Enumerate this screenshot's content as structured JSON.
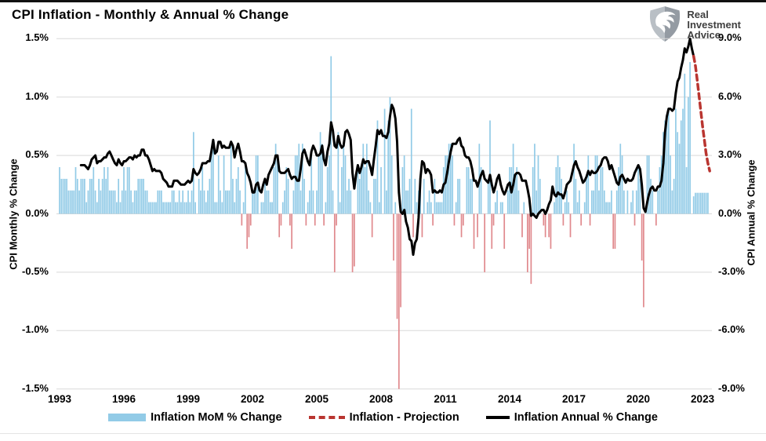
{
  "header": {
    "title": "CPI Inflation - Monthly & Annual % Change",
    "logo": {
      "line1": "Real",
      "line2": "Investment",
      "line3": "Advice"
    }
  },
  "chart_data": {
    "type": "combo-bar-line",
    "title": "CPI Inflation - Monthly & Annual % Change",
    "grid": true,
    "left_axis": {
      "label": "CPI Monthly % Change",
      "ticks": [
        "1.5%",
        "1.0%",
        "0.5%",
        "0.0%",
        "-0.5%",
        "-1.0%",
        "-1.5%"
      ],
      "min": -1.5,
      "max": 1.5
    },
    "right_axis": {
      "label": "CPI Annual % Change",
      "ticks": [
        "9.0%",
        "6.0%",
        "3.0%",
        "0.0%",
        "-3.0%",
        "-6.0%",
        "-9.0%"
      ],
      "min": -9.0,
      "max": 9.0
    },
    "x_axis": {
      "ticks": [
        "1993",
        "1996",
        "1999",
        "2002",
        "2005",
        "2008",
        "2011",
        "2014",
        "2017",
        "2020",
        "2023"
      ],
      "start_year": 1993,
      "end_year": 2023
    },
    "colors": {
      "bar_positive": "#92CBE7",
      "bar_negative": "#E0898D",
      "annual_line": "#000000",
      "projection_line": "#B93530",
      "gridline": "#D9D9D9"
    },
    "legend": [
      {
        "label": "Inflation MoM % Change",
        "swatch": "bar",
        "color": "#92CBE7"
      },
      {
        "label": "Inflation - Projection",
        "swatch": "dashed-line",
        "color": "#B93530"
      },
      {
        "label": "Inflation Annual % Change",
        "swatch": "line",
        "color": "#000000"
      }
    ],
    "series": [
      {
        "name": "Inflation MoM % Change",
        "type": "bar",
        "axis": "left",
        "start": "1993-01",
        "values": [
          0.4,
          0.3,
          0.3,
          0.3,
          0.3,
          0.2,
          0.2,
          0.2,
          0.2,
          0.4,
          0.3,
          0.2,
          0.3,
          0.3,
          0.3,
          0.1,
          0.2,
          0.3,
          0.3,
          0.4,
          0.2,
          0.1,
          0.3,
          0.2,
          0.3,
          0.4,
          0.3,
          0.4,
          0.2,
          0.2,
          0.2,
          0.2,
          0.1,
          0.3,
          0.1,
          0.2,
          0.4,
          0.2,
          0.4,
          0.4,
          0.2,
          0.1,
          0.2,
          0.2,
          0.3,
          0.3,
          0.3,
          0.3,
          0.2,
          0.2,
          0.1,
          0.1,
          0.1,
          0.1,
          0.1,
          0.2,
          0.2,
          0.2,
          0.1,
          0.1,
          0.1,
          0.1,
          0.1,
          0.2,
          0.2,
          0.1,
          0.1,
          0.2,
          0.1,
          0.2,
          0.1,
          0.1,
          0.2,
          0.1,
          0.2,
          0.7,
          0.1,
          0.0,
          0.3,
          0.2,
          0.4,
          0.2,
          0.1,
          0.2,
          0.3,
          0.5,
          0.6,
          0.1,
          0.1,
          0.5,
          0.2,
          0.1,
          0.5,
          0.2,
          0.2,
          0.2,
          0.6,
          0.3,
          0.1,
          0.3,
          0.4,
          0.2,
          -0.1,
          0.1,
          0.4,
          -0.3,
          -0.2,
          -0.1,
          0.2,
          0.2,
          0.5,
          0.5,
          0.0,
          0.1,
          0.1,
          0.3,
          0.2,
          0.2,
          0.1,
          0.1,
          0.4,
          0.6,
          0.5,
          -0.2,
          -0.1,
          0.1,
          0.2,
          0.4,
          0.3,
          -0.1,
          -0.3,
          0.2,
          0.5,
          0.5,
          0.6,
          0.2,
          0.6,
          0.3,
          -0.1,
          0.1,
          0.2,
          0.5,
          0.2,
          -0.1,
          0.2,
          0.5,
          0.7,
          0.6,
          -0.1,
          0.1,
          0.4,
          0.5,
          1.35,
          0.2,
          -0.5,
          -0.1,
          0.7,
          0.1,
          0.4,
          0.6,
          0.5,
          0.2,
          0.3,
          0.2,
          -0.5,
          -0.45,
          0.0,
          0.4,
          0.3,
          0.4,
          0.6,
          0.4,
          0.6,
          0.2,
          0.1,
          -0.2,
          0.3,
          0.3,
          0.8,
          0.1,
          0.4,
          0.0,
          0.9,
          0.2,
          0.8,
          1.0,
          0.5,
          -0.4,
          0.1,
          -0.9,
          -1.7,
          -0.8,
          0.4,
          0.5,
          0.2,
          0.2,
          0.3,
          0.9,
          -0.2,
          0.3,
          0.1,
          0.2,
          0.3,
          -0.2,
          0.3,
          0.0,
          0.1,
          0.2,
          0.1,
          -0.1,
          0.3,
          0.1,
          0.1,
          0.1,
          0.1,
          0.4,
          0.5,
          0.5,
          0.6,
          0.6,
          0.5,
          -0.1,
          0.1,
          0.3,
          0.3,
          -0.2,
          -0.1,
          0.0,
          0.4,
          0.4,
          0.3,
          0.3,
          -0.3,
          0.0,
          -0.2,
          0.6,
          0.4,
          0.0,
          -0.5,
          0.0,
          0.3,
          0.8,
          -0.3,
          -0.1,
          0.1,
          0.2,
          0.0,
          0.1,
          0.1,
          -0.3,
          0.0,
          0.2,
          0.4,
          0.4,
          0.6,
          0.3,
          0.4,
          0.2,
          0.0,
          -0.2,
          0.1,
          0.0,
          -0.5,
          -0.3,
          -0.6,
          0.4,
          0.6,
          0.2,
          0.5,
          0.3,
          0.0,
          -0.1,
          -0.2,
          0.0,
          -0.2,
          -0.3,
          0.0,
          0.1,
          0.4,
          0.5,
          0.4,
          0.3,
          -0.1,
          0.1,
          0.2,
          0.1,
          -0.2,
          0.0,
          0.6,
          0.3,
          0.1,
          0.2,
          -0.1,
          0.0,
          0.1,
          0.3,
          0.5,
          -0.1,
          0.2,
          0.2,
          0.5,
          0.5,
          0.2,
          0.4,
          0.4,
          0.2,
          0.1,
          0.1,
          0.1,
          0.2,
          -0.3,
          -0.3,
          0.2,
          0.4,
          0.6,
          0.5,
          0.2,
          0.0,
          0.2,
          0.0,
          0.1,
          0.2,
          -0.1,
          0.2,
          0.4,
          0.3,
          -0.4,
          -0.8,
          0.0,
          0.5,
          0.5,
          0.3,
          0.2,
          0.0,
          -0.1,
          0.2,
          0.4,
          0.5,
          0.7,
          0.8,
          0.8,
          0.9,
          0.5,
          0.2,
          0.3,
          0.9,
          0.7,
          0.6,
          0.8,
          0.9,
          1.2,
          0.4,
          1.0,
          1.3,
          0.0,
          0.15,
          0.18,
          0.18,
          0.18,
          0.18,
          0.18,
          0.18,
          0.18,
          0.18
        ]
      },
      {
        "name": "Inflation Annual % Change",
        "type": "line",
        "axis": "right",
        "start": "1994-01",
        "values": [
          2.5,
          2.5,
          2.5,
          2.4,
          2.3,
          2.5,
          2.8,
          2.9,
          3.0,
          2.6,
          2.7,
          2.7,
          2.8,
          2.9,
          2.9,
          3.1,
          3.2,
          3.0,
          2.8,
          2.6,
          2.5,
          2.8,
          2.6,
          2.5,
          2.7,
          2.7,
          2.8,
          2.9,
          2.9,
          2.8,
          3.0,
          2.9,
          3.0,
          3.0,
          3.3,
          3.3,
          3.0,
          3.0,
          2.8,
          2.5,
          2.2,
          2.3,
          2.2,
          2.2,
          2.2,
          2.1,
          1.8,
          1.7,
          1.6,
          1.4,
          1.4,
          1.4,
          1.7,
          1.7,
          1.7,
          1.6,
          1.5,
          1.5,
          1.5,
          1.6,
          1.7,
          1.6,
          1.7,
          2.3,
          2.1,
          2.0,
          2.1,
          2.3,
          2.6,
          2.6,
          2.6,
          2.7,
          2.7,
          3.2,
          3.8,
          3.1,
          3.2,
          3.7,
          3.7,
          3.4,
          3.5,
          3.4,
          3.4,
          3.4,
          3.7,
          3.5,
          2.9,
          3.3,
          3.6,
          3.2,
          2.7,
          2.7,
          2.6,
          2.1,
          1.9,
          1.6,
          1.1,
          1.1,
          1.5,
          1.6,
          1.2,
          1.1,
          1.5,
          1.8,
          1.5,
          2.0,
          2.2,
          2.4,
          2.6,
          3.0,
          3.0,
          2.2,
          2.1,
          2.1,
          2.1,
          2.2,
          2.3,
          2.0,
          1.8,
          1.9,
          1.9,
          1.7,
          1.7,
          2.3,
          3.1,
          3.3,
          3.0,
          2.7,
          2.5,
          3.2,
          3.5,
          3.3,
          3.0,
          3.0,
          3.1,
          3.5,
          2.8,
          2.5,
          3.2,
          3.6,
          4.7,
          4.3,
          3.5,
          3.4,
          4.0,
          3.6,
          3.4,
          3.5,
          4.2,
          4.3,
          4.1,
          3.8,
          2.1,
          1.3,
          2.0,
          2.5,
          2.1,
          2.4,
          2.8,
          2.6,
          2.7,
          2.7,
          2.4,
          2.0,
          2.8,
          3.5,
          4.3,
          4.1,
          4.3,
          4.0,
          4.0,
          3.9,
          4.2,
          5.0,
          5.6,
          5.4,
          4.9,
          3.7,
          1.1,
          0.1,
          0.0,
          0.2,
          -0.4,
          -0.7,
          -1.3,
          -1.4,
          -2.1,
          -1.5,
          -1.3,
          -0.2,
          1.8,
          2.7,
          2.6,
          2.1,
          2.3,
          2.2,
          2.0,
          1.1,
          1.2,
          1.1,
          1.1,
          1.2,
          1.1,
          1.5,
          1.6,
          2.1,
          2.7,
          3.2,
          3.6,
          3.6,
          3.6,
          3.8,
          3.9,
          3.5,
          3.4,
          3.0,
          2.9,
          2.9,
          2.7,
          2.3,
          1.7,
          1.7,
          1.4,
          1.7,
          2.0,
          2.2,
          1.8,
          1.7,
          1.6,
          2.0,
          1.5,
          1.1,
          1.4,
          1.8,
          2.0,
          1.5,
          1.2,
          1.0,
          1.2,
          1.5,
          1.6,
          1.1,
          1.5,
          2.0,
          2.1,
          2.1,
          2.0,
          1.7,
          1.7,
          1.7,
          1.3,
          0.8,
          -0.1,
          0.0,
          -0.1,
          -0.2,
          0.0,
          0.1,
          0.2,
          0.2,
          0.0,
          0.2,
          0.5,
          0.7,
          1.4,
          1.0,
          0.9,
          1.1,
          1.0,
          1.0,
          0.8,
          1.1,
          1.5,
          1.6,
          1.7,
          2.1,
          2.5,
          2.7,
          2.4,
          2.2,
          1.9,
          1.6,
          1.7,
          1.9,
          2.2,
          2.0,
          2.2,
          2.1,
          2.1,
          2.2,
          2.4,
          2.5,
          2.8,
          2.9,
          2.9,
          2.7,
          2.3,
          2.5,
          2.2,
          1.9,
          1.6,
          1.5,
          1.9,
          2.0,
          1.8,
          1.6,
          1.8,
          1.7,
          1.7,
          1.8,
          2.1,
          2.3,
          2.5,
          2.3,
          1.5,
          0.3,
          0.1,
          0.6,
          1.0,
          1.3,
          1.4,
          1.2,
          1.2,
          1.4,
          1.4,
          1.7,
          2.6,
          4.2,
          5.0,
          5.4,
          5.4,
          5.3,
          5.4,
          6.2,
          6.8,
          7.0,
          7.5,
          7.9,
          8.5,
          8.3,
          8.6,
          9.0,
          8.5,
          8.1
        ]
      },
      {
        "name": "Inflation - Projection",
        "type": "line",
        "dashed": true,
        "axis": "right",
        "start": "2022-08",
        "values": [
          8.1,
          7.6,
          6.9,
          6.1,
          5.3,
          4.5,
          3.8,
          3.1,
          2.6,
          2.2
        ]
      }
    ]
  }
}
